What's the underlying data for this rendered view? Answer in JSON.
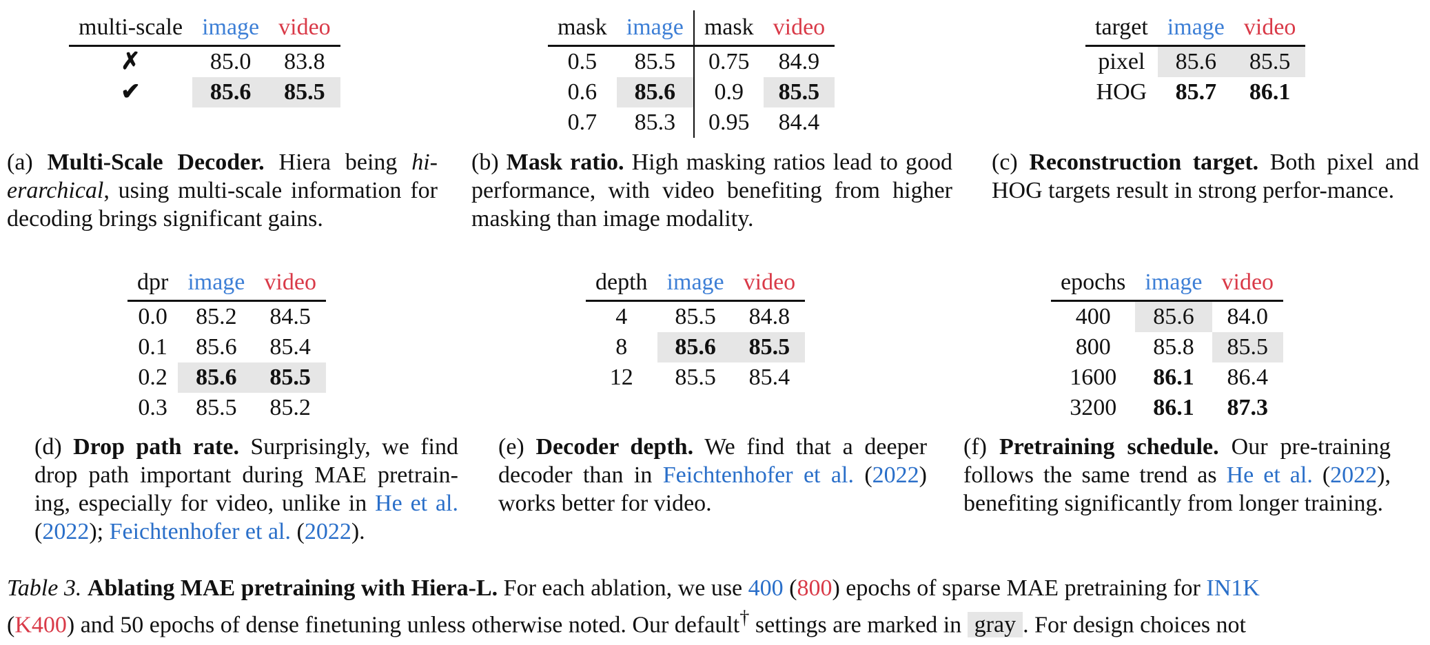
{
  "table_a": {
    "headers": [
      "multi-scale",
      "image",
      "video"
    ],
    "rows": [
      {
        "flag": "✗",
        "image": "85.0",
        "video": "83.8"
      },
      {
        "flag": "✔",
        "image": "85.6",
        "video": "85.5"
      }
    ]
  },
  "table_b": {
    "headers": [
      "mask",
      "image",
      "mask",
      "video"
    ],
    "rows": [
      {
        "mask_i": "0.5",
        "image": "85.5",
        "mask_v": "0.75",
        "video": "84.9"
      },
      {
        "mask_i": "0.6",
        "image": "85.6",
        "mask_v": "0.9",
        "video": "85.5"
      },
      {
        "mask_i": "0.7",
        "image": "85.3",
        "mask_v": "0.95",
        "video": "84.4"
      }
    ]
  },
  "table_c": {
    "headers": [
      "target",
      "image",
      "video"
    ],
    "rows": [
      {
        "target": "pixel",
        "image": "85.6",
        "video": "85.5"
      },
      {
        "target": "HOG",
        "image": "85.7",
        "video": "86.1"
      }
    ]
  },
  "table_d": {
    "headers": [
      "dpr",
      "image",
      "video"
    ],
    "rows": [
      {
        "dpr": "0.0",
        "image": "85.2",
        "video": "84.5"
      },
      {
        "dpr": "0.1",
        "image": "85.6",
        "video": "85.4"
      },
      {
        "dpr": "0.2",
        "image": "85.6",
        "video": "85.5"
      },
      {
        "dpr": "0.3",
        "image": "85.5",
        "video": "85.2"
      }
    ]
  },
  "table_e": {
    "headers": [
      "depth",
      "image",
      "video"
    ],
    "rows": [
      {
        "depth": "4",
        "image": "85.5",
        "video": "84.8"
      },
      {
        "depth": "8",
        "image": "85.6",
        "video": "85.5"
      },
      {
        "depth": "12",
        "image": "85.5",
        "video": "85.4"
      }
    ]
  },
  "table_f": {
    "headers": [
      "epochs",
      "image",
      "video"
    ],
    "rows": [
      {
        "epochs": "400",
        "image": "85.6",
        "video": "84.0"
      },
      {
        "epochs": "800",
        "image": "85.8",
        "video": "85.5"
      },
      {
        "epochs": "1600",
        "image": "86.1",
        "video": "86.4"
      },
      {
        "epochs": "3200",
        "image": "86.1",
        "video": "87.3"
      }
    ]
  },
  "captions": {
    "a": {
      "tag": "(a)",
      "title": "Multi-Scale Decoder.",
      "t1": "Hiera being ",
      "em": "hi-erarchical",
      "t2": ", using multi-scale information for decoding brings significant gains."
    },
    "b": {
      "tag": "(b)",
      "title": "Mask ratio.",
      "text": "High masking ratios lead to good performance, with video benefiting from higher masking than image modality."
    },
    "c": {
      "tag": "(c)",
      "title": "Reconstruction target.",
      "text": "Both pixel and HOG targets result in strong perfor-mance."
    },
    "d": {
      "tag": "(d)",
      "title": "Drop path rate.",
      "t1": "Surprisingly, we find drop path important during MAE pretrain-ing, especially for video, unlike in ",
      "link1": "He et al.",
      "p1": " (",
      "year1": "2022",
      "p2": "); ",
      "link2": "Feichtenhofer et al.",
      "p3": " (",
      "year2": "2022",
      "p4": ")."
    },
    "e": {
      "tag": "(e)",
      "title": "Decoder depth.",
      "t1": "We find that a deeper decoder than in ",
      "link1": "Feichtenhofer et al.",
      "p1": " (",
      "year1": "2022",
      "t2": ") works better for video."
    },
    "f": {
      "tag": "(f)",
      "title": "Pretraining schedule.",
      "t1": "Our pre-training follows the same trend as ",
      "link1": "He et al.",
      "p1": " (",
      "year1": "2022",
      "t2": "), benefiting significantly from longer training."
    }
  },
  "footer": {
    "label": "Table 3.",
    "title": "Ablating MAE pretraining with Hiera-L.",
    "t1": "For each ablation, we use",
    "n400": "400",
    "p1": "(",
    "n800": "800",
    "t2": ") epochs of sparse MAE pretraining for",
    "in1k": "IN1K",
    "k400": "K400",
    "t3": ") and 50 epochs of dense finetuning unless otherwise noted. Our default",
    "dagger": "†",
    "t4": " settings are marked in",
    "gray": "gray",
    "t5": ". For design choices not"
  }
}
